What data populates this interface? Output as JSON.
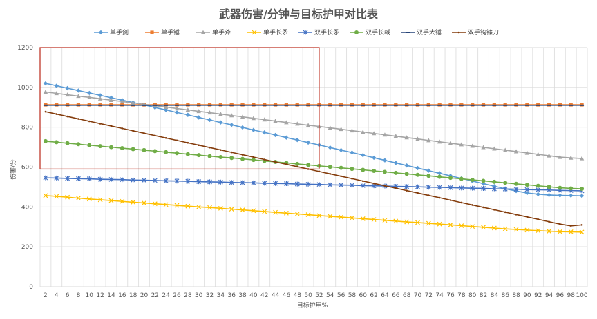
{
  "chart_data": {
    "type": "line",
    "title": "武器伤害/分钟与目标护甲对比表",
    "xlabel": "目标护甲%",
    "ylabel": "伤害/分",
    "ylim": [
      0,
      1200
    ],
    "yticks": [
      0,
      200,
      400,
      600,
      800,
      1000,
      1200
    ],
    "x": [
      2,
      4,
      6,
      8,
      10,
      12,
      14,
      16,
      18,
      20,
      22,
      24,
      26,
      28,
      30,
      32,
      34,
      36,
      38,
      40,
      42,
      44,
      46,
      48,
      50,
      52,
      54,
      56,
      58,
      60,
      62,
      64,
      66,
      68,
      70,
      72,
      74,
      76,
      78,
      80,
      82,
      84,
      86,
      88,
      90,
      92,
      94,
      96,
      98,
      100
    ],
    "grid": "vertical-and-horizontal",
    "legend_position": "top",
    "highlight_box": {
      "x_range": [
        0,
        51
      ],
      "y_range": [
        590,
        1200
      ],
      "color": "#c0392b"
    },
    "series": [
      {
        "name": "单手剑",
        "color": "#5b9bd5",
        "marker": "diamond",
        "values": [
          1020,
          1008,
          996,
          984,
          972,
          960,
          948,
          936,
          924,
          912,
          899,
          887,
          874,
          862,
          849,
          837,
          824,
          812,
          799,
          786,
          774,
          761,
          748,
          736,
          723,
          711,
          698,
          685,
          673,
          660,
          647,
          634,
          621,
          608,
          595,
          582,
          569,
          556,
          543,
          530,
          517,
          504,
          491,
          480,
          470,
          464,
          460,
          458,
          457,
          456
        ]
      },
      {
        "name": "单手锤",
        "color": "#ed7d31",
        "marker": "square",
        "values": [
          913,
          913,
          913,
          913,
          913,
          913,
          913,
          913,
          913,
          913,
          913,
          913,
          913,
          913,
          913,
          913,
          913,
          913,
          913,
          913,
          913,
          913,
          913,
          913,
          913,
          913,
          913,
          913,
          913,
          913,
          913,
          913,
          913,
          913,
          913,
          913,
          913,
          913,
          913,
          913,
          913,
          913,
          913,
          913,
          913,
          913,
          913,
          913,
          913,
          913
        ]
      },
      {
        "name": "单手斧",
        "color": "#a5a5a5",
        "marker": "triangle",
        "values": [
          977,
          970,
          963,
          956,
          950,
          943,
          936,
          929,
          922,
          915,
          908,
          901,
          894,
          887,
          880,
          873,
          866,
          859,
          852,
          845,
          838,
          831,
          824,
          817,
          810,
          804,
          797,
          790,
          783,
          776,
          769,
          762,
          755,
          748,
          741,
          734,
          727,
          720,
          713,
          706,
          699,
          692,
          685,
          678,
          671,
          664,
          657,
          650,
          646,
          643
        ]
      },
      {
        "name": "单手长矛",
        "color": "#ffc000",
        "marker": "x",
        "values": [
          457,
          453,
          449,
          444,
          440,
          436,
          432,
          428,
          424,
          420,
          416,
          412,
          408,
          404,
          400,
          397,
          393,
          389,
          385,
          381,
          377,
          373,
          369,
          365,
          361,
          357,
          353,
          349,
          345,
          341,
          337,
          333,
          329,
          325,
          322,
          318,
          314,
          310,
          306,
          302,
          298,
          294,
          290,
          287,
          284,
          281,
          278,
          276,
          275,
          274
        ]
      },
      {
        "name": "双手长矛",
        "color": "#4472c4",
        "marker": "star",
        "values": [
          546,
          545,
          543,
          542,
          541,
          539,
          538,
          537,
          535,
          534,
          533,
          531,
          530,
          529,
          527,
          526,
          525,
          523,
          522,
          521,
          519,
          518,
          517,
          515,
          514,
          513,
          511,
          510,
          509,
          507,
          506,
          505,
          503,
          502,
          501,
          499,
          498,
          497,
          495,
          494,
          493,
          491,
          490,
          489,
          487,
          486,
          485,
          483,
          482,
          481
        ]
      },
      {
        "name": "双手长戟",
        "color": "#70ad47",
        "marker": "circle",
        "values": [
          730,
          725,
          720,
          715,
          710,
          705,
          700,
          695,
          690,
          685,
          680,
          675,
          670,
          665,
          660,
          655,
          650,
          646,
          641,
          636,
          631,
          626,
          621,
          616,
          611,
          606,
          601,
          596,
          591,
          586,
          581,
          576,
          571,
          566,
          561,
          556,
          551,
          546,
          541,
          536,
          531,
          526,
          521,
          516,
          511,
          506,
          501,
          496,
          493,
          491
        ]
      },
      {
        "name": "双手大锤",
        "color": "#264478",
        "marker": "dash",
        "values": [
          910,
          910,
          910,
          910,
          910,
          910,
          910,
          910,
          910,
          910,
          910,
          910,
          910,
          910,
          910,
          910,
          910,
          910,
          910,
          910,
          910,
          910,
          910,
          910,
          910,
          910,
          910,
          910,
          910,
          910,
          910,
          910,
          910,
          910,
          910,
          910,
          910,
          910,
          910,
          910,
          910,
          910,
          910,
          910,
          910,
          910,
          910,
          910,
          910,
          910
        ]
      },
      {
        "name": "双手钩镰刀",
        "color": "#843c0c",
        "marker": "dot",
        "values": [
          878,
          866,
          854,
          842,
          830,
          818,
          806,
          794,
          782,
          770,
          758,
          746,
          734,
          722,
          710,
          698,
          686,
          674,
          662,
          650,
          638,
          626,
          614,
          602,
          590,
          578,
          566,
          554,
          542,
          530,
          518,
          506,
          494,
          482,
          470,
          458,
          446,
          434,
          422,
          410,
          398,
          386,
          374,
          362,
          350,
          338,
          326,
          314,
          305,
          310
        ]
      }
    ]
  }
}
